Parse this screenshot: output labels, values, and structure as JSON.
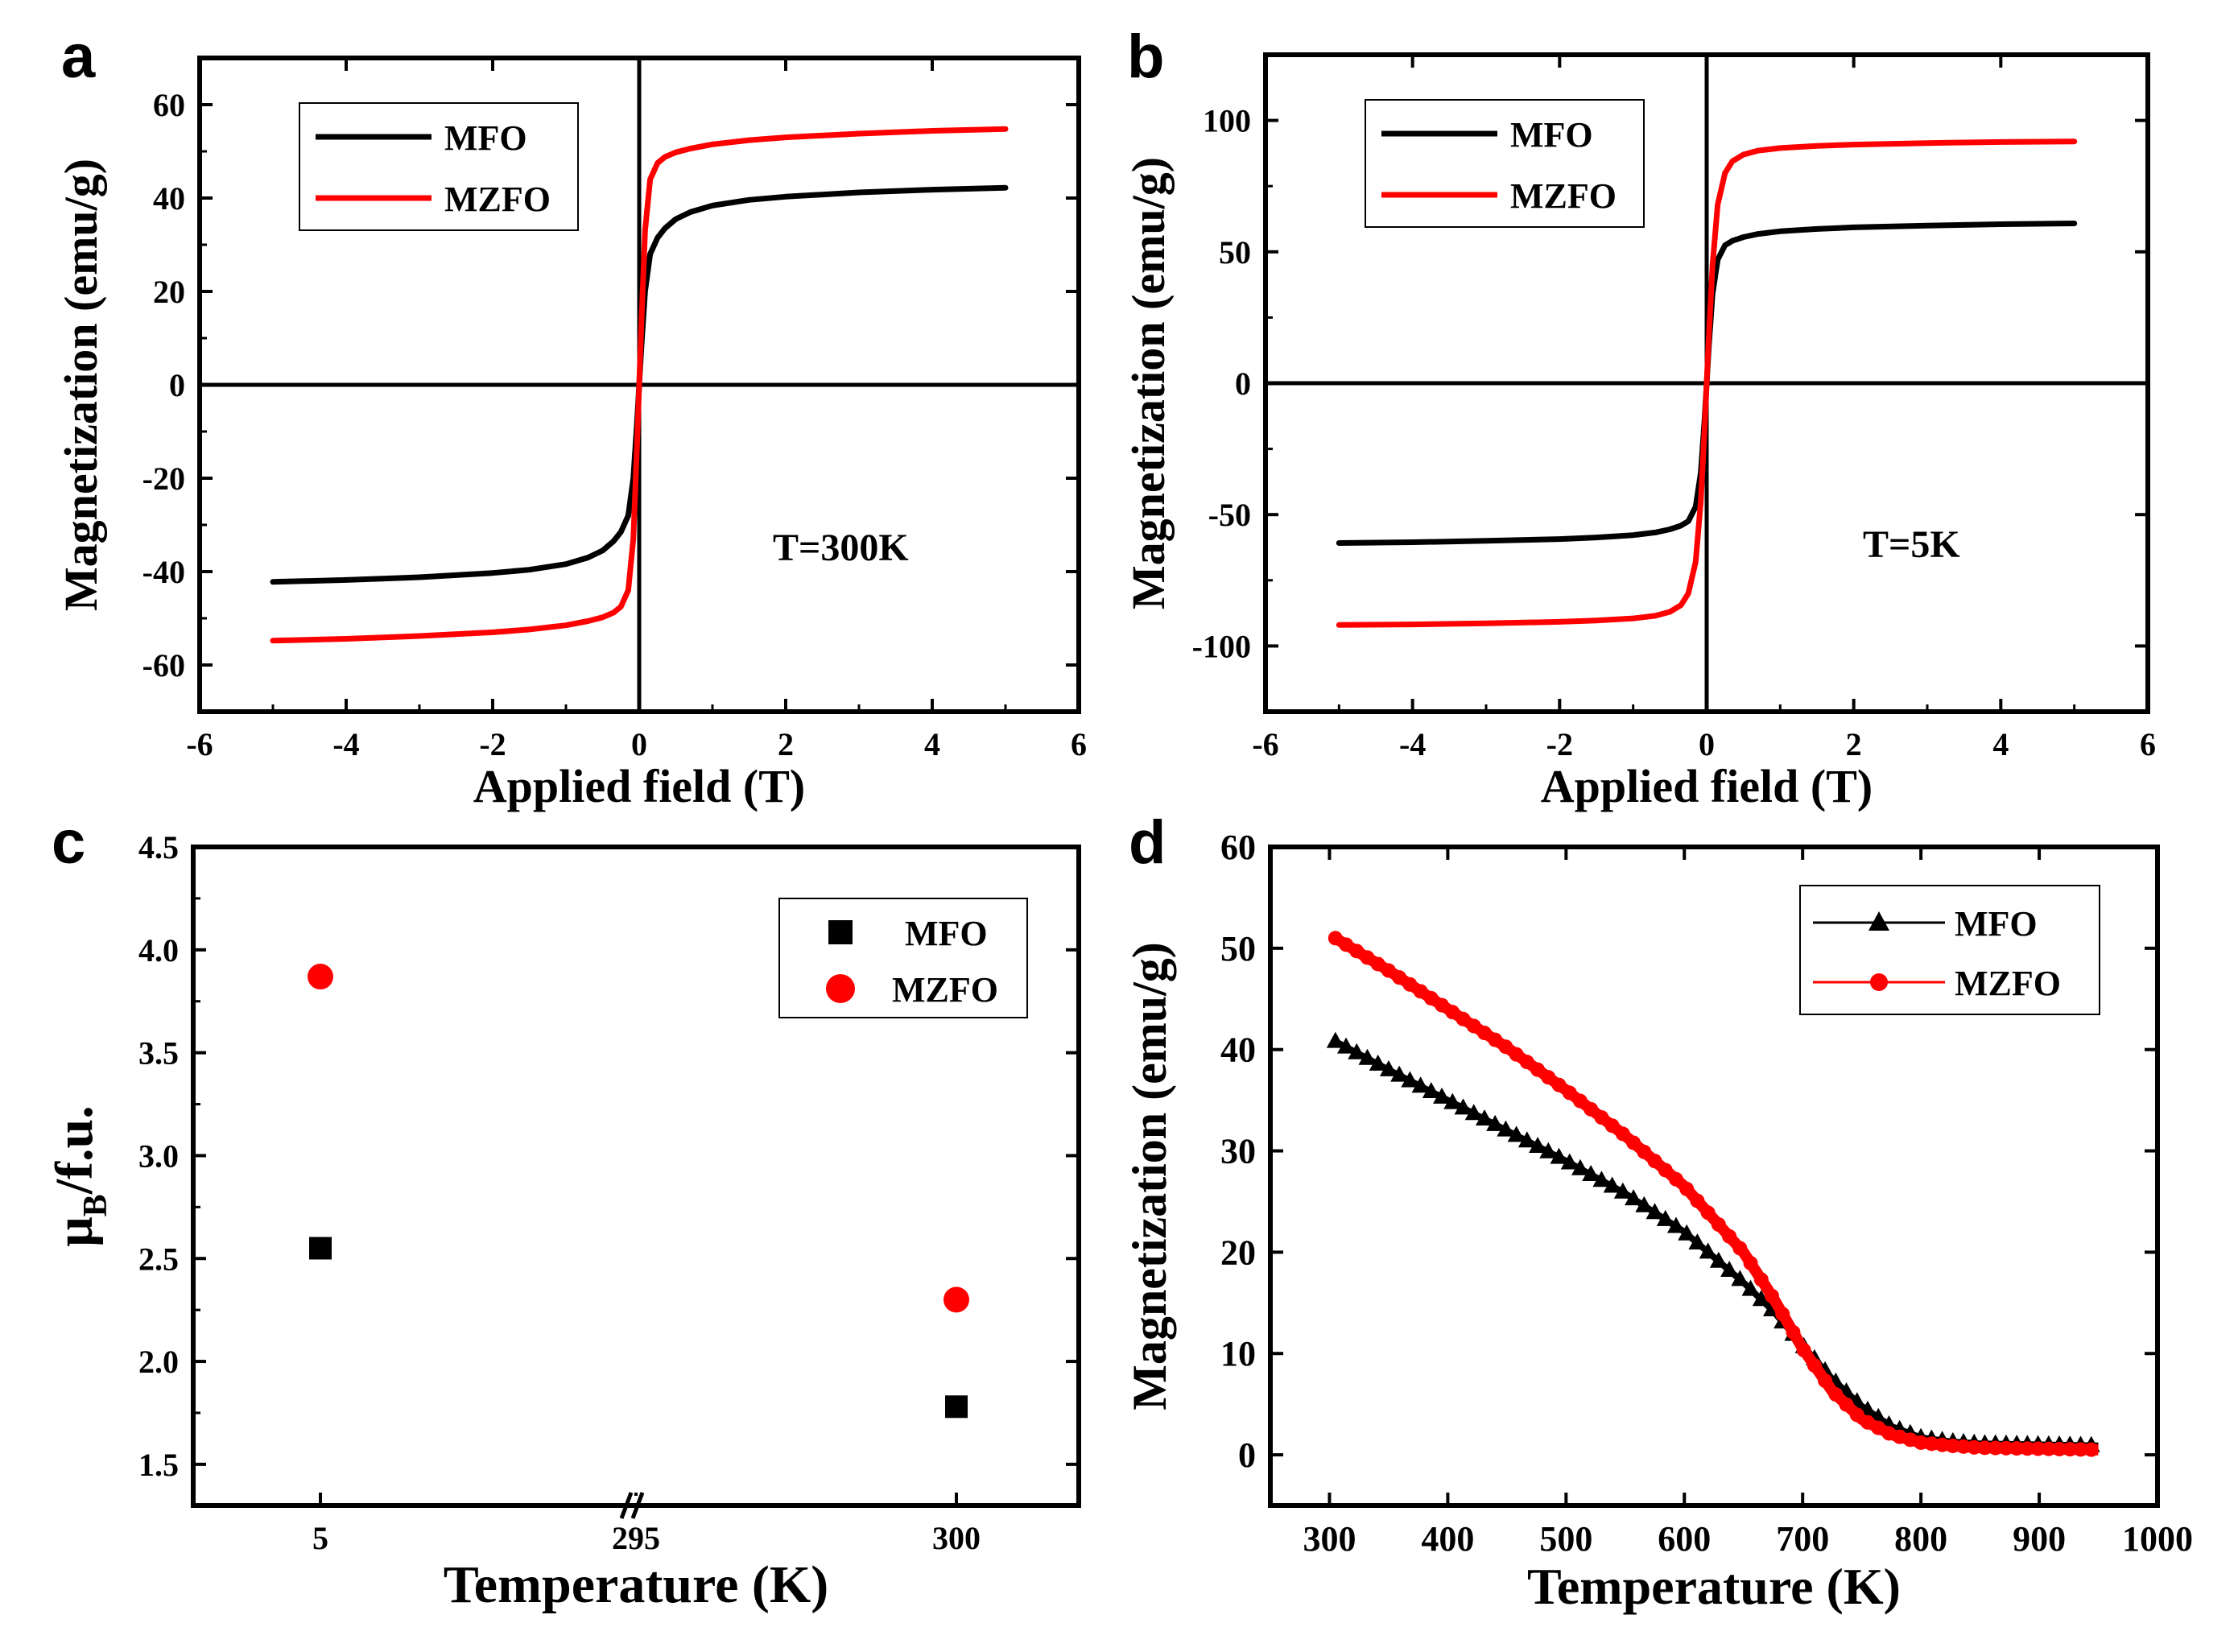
{
  "chart_data": [
    {
      "panel": "a",
      "type": "line",
      "xlabel": "Applied field (T)",
      "ylabel": "Magnetization (emu/g)",
      "xlim": [
        -6,
        6
      ],
      "ylim": [
        -70,
        70
      ],
      "xticks": [
        -6,
        -4,
        -2,
        0,
        2,
        4,
        6
      ],
      "yticks": [
        -60,
        -40,
        -20,
        0,
        20,
        40,
        60
      ],
      "annotation": "T=300K",
      "legend_position": "top-left",
      "series": [
        {
          "name": "MFO",
          "color": "#000000",
          "x": [
            -5,
            -4,
            -3,
            -2,
            -1.5,
            -1,
            -0.7,
            -0.5,
            -0.35,
            -0.25,
            -0.15,
            -0.08,
            -0.03,
            0,
            0.03,
            0.08,
            0.15,
            0.25,
            0.35,
            0.5,
            0.7,
            1,
            1.5,
            2,
            3,
            4,
            5
          ],
          "y": [
            -42.2,
            -41.8,
            -41.2,
            -40.3,
            -39.6,
            -38.4,
            -37.0,
            -35.5,
            -33.5,
            -31.5,
            -28,
            -20,
            -8,
            0,
            8,
            20,
            28,
            31.5,
            33.5,
            35.5,
            37.0,
            38.4,
            39.6,
            40.3,
            41.2,
            41.8,
            42.2
          ]
        },
        {
          "name": "MZFO",
          "color": "#ff0000",
          "x": [
            -5,
            -4,
            -3,
            -2,
            -1.5,
            -1,
            -0.7,
            -0.5,
            -0.35,
            -0.25,
            -0.15,
            -0.08,
            -0.03,
            0,
            0.03,
            0.08,
            0.15,
            0.25,
            0.35,
            0.5,
            0.7,
            1,
            1.5,
            2,
            3,
            4,
            5
          ],
          "y": [
            -54.8,
            -54.4,
            -53.8,
            -53.0,
            -52.4,
            -51.5,
            -50.6,
            -49.8,
            -48.8,
            -47.5,
            -44,
            -33,
            -13,
            0,
            13,
            33,
            44,
            47.5,
            48.8,
            49.8,
            50.6,
            51.5,
            52.4,
            53.0,
            53.8,
            54.4,
            54.8
          ]
        }
      ]
    },
    {
      "panel": "b",
      "type": "line",
      "xlabel": "Applied field (T)",
      "ylabel": "Magnetization (emu/g)",
      "xlim": [
        -6,
        6
      ],
      "ylim": [
        -125,
        125
      ],
      "xticks": [
        -6,
        -4,
        -2,
        0,
        2,
        4,
        6
      ],
      "yticks": [
        -100,
        -50,
        0,
        50,
        100
      ],
      "annotation": "T=5K",
      "legend_position": "top-left",
      "series": [
        {
          "name": "MFO",
          "color": "#000000",
          "x": [
            -5,
            -4,
            -3,
            -2,
            -1.5,
            -1,
            -0.7,
            -0.5,
            -0.35,
            -0.25,
            -0.15,
            -0.08,
            -0.03,
            0,
            0.03,
            0.08,
            0.15,
            0.25,
            0.35,
            0.5,
            0.7,
            1,
            1.5,
            2,
            3,
            4,
            5
          ],
          "y": [
            -60.8,
            -60.5,
            -60.0,
            -59.3,
            -58.7,
            -57.8,
            -56.8,
            -55.6,
            -54.2,
            -52.5,
            -47,
            -34,
            -14,
            0,
            14,
            34,
            47,
            52.5,
            54.2,
            55.6,
            56.8,
            57.8,
            58.7,
            59.3,
            60.0,
            60.5,
            60.8
          ]
        },
        {
          "name": "MZFO",
          "color": "#ff0000",
          "x": [
            -5,
            -4,
            -3,
            -2,
            -1.5,
            -1,
            -0.7,
            -0.5,
            -0.35,
            -0.25,
            -0.15,
            -0.08,
            -0.03,
            0,
            0.03,
            0.08,
            0.15,
            0.25,
            0.35,
            0.5,
            0.7,
            1,
            1.5,
            2,
            3,
            4,
            5
          ],
          "y": [
            -92.0,
            -91.8,
            -91.4,
            -90.8,
            -90.3,
            -89.5,
            -88.5,
            -87.0,
            -84.5,
            -80,
            -68,
            -45,
            -18,
            0,
            18,
            45,
            68,
            80,
            84.5,
            87.0,
            88.5,
            89.5,
            90.3,
            90.8,
            91.4,
            91.8,
            92.0
          ]
        }
      ]
    },
    {
      "panel": "c",
      "type": "scatter",
      "xlabel": "Temperature (K)",
      "ylabel_main": "μ",
      "ylabel_sub": "B",
      "ylabel_rest": "/f.u.",
      "categories": [
        "5",
        "295",
        "300"
      ],
      "axis_break_at": "295",
      "ylim": [
        1.3,
        4.5
      ],
      "yticks": [
        "1.5",
        "2.0",
        "2.5",
        "3.0",
        "3.5",
        "4.0",
        "4.5"
      ],
      "legend_position": "top-right",
      "series": [
        {
          "name": "MFO",
          "color": "#000000",
          "marker": "square",
          "points": [
            {
              "x": "5",
              "y": 2.55
            },
            {
              "x": "300",
              "y": 1.78
            }
          ]
        },
        {
          "name": "MZFO",
          "color": "#ff0000",
          "marker": "circle",
          "points": [
            {
              "x": "5",
              "y": 3.87
            },
            {
              "x": "300",
              "y": 2.3
            }
          ]
        }
      ]
    },
    {
      "panel": "d",
      "type": "line",
      "xlabel": "Temperature (K)",
      "ylabel": "Magnetization (emu/g)",
      "xlim": [
        250,
        1000
      ],
      "ylim": [
        -5,
        60
      ],
      "xticks": [
        300,
        400,
        500,
        600,
        700,
        800,
        900,
        1000
      ],
      "yticks": [
        0,
        10,
        20,
        30,
        40,
        50,
        60
      ],
      "legend_position": "top-right",
      "series": [
        {
          "name": "MFO",
          "color": "#000000",
          "marker": "triangle",
          "x": [
            305,
            350,
            400,
            450,
            500,
            550,
            600,
            650,
            675,
            700,
            725,
            750,
            775,
            800,
            825,
            850,
            900,
            950
          ],
          "y": [
            40.8,
            38.0,
            35.0,
            32.0,
            29.0,
            25.8,
            22.0,
            17.0,
            14.2,
            10.8,
            7.5,
            4.8,
            2.8,
            1.7,
            1.3,
            1.1,
            1.0,
            0.9
          ]
        },
        {
          "name": "MZFO",
          "color": "#ff0000",
          "marker": "circle",
          "x": [
            305,
            350,
            400,
            450,
            500,
            550,
            600,
            650,
            675,
            700,
            725,
            750,
            775,
            800,
            825,
            850,
            900,
            950
          ],
          "y": [
            51.0,
            47.8,
            44.0,
            40.2,
            36.0,
            31.5,
            26.5,
            20.0,
            15.5,
            10.5,
            6.3,
            3.5,
            2.0,
            1.2,
            0.9,
            0.7,
            0.6,
            0.5
          ]
        }
      ]
    }
  ]
}
